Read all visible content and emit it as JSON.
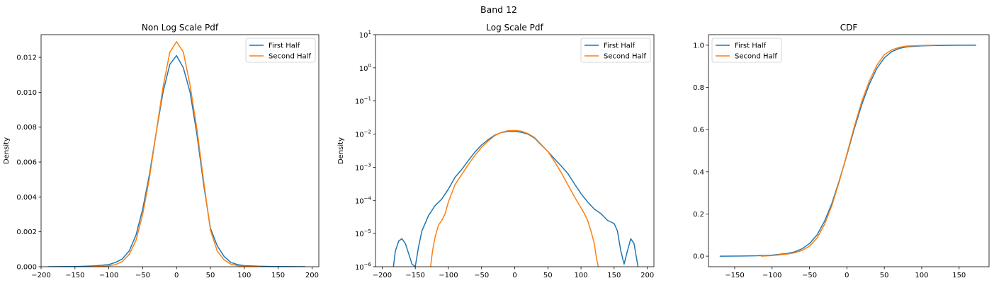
{
  "figure_title": "Band 12",
  "colors": {
    "first": "#1f77b4",
    "second": "#ff7f0e"
  },
  "chart_data": [
    {
      "type": "line",
      "title": "Non Log Scale Pdf",
      "xlabel": "",
      "ylabel": "Density",
      "xlim": [
        -200,
        210
      ],
      "ylim": [
        0,
        0.0133
      ],
      "yscale": "linear",
      "xticks": [
        -200,
        -150,
        -100,
        -50,
        0,
        50,
        100,
        150,
        200
      ],
      "yticks": [
        0,
        0.002,
        0.004,
        0.006,
        0.008,
        0.01,
        0.012
      ],
      "ytick_labels": [
        "0.000",
        "0.002",
        "0.004",
        "0.006",
        "0.008",
        "0.010",
        "0.012"
      ],
      "legend": "top-right",
      "series": [
        {
          "name": "First Half",
          "x": [
            -190,
            -160,
            -140,
            -120,
            -100,
            -90,
            -80,
            -70,
            -60,
            -50,
            -40,
            -30,
            -20,
            -10,
            0,
            10,
            20,
            30,
            40,
            50,
            60,
            70,
            80,
            90,
            100,
            120,
            150,
            190
          ],
          "y": [
            0.0,
            1e-05,
            2e-05,
            5e-05,
            0.00012,
            0.00025,
            0.00045,
            0.0009,
            0.0018,
            0.0033,
            0.0053,
            0.0077,
            0.01,
            0.0116,
            0.0121,
            0.0114,
            0.01,
            0.0076,
            0.0047,
            0.0022,
            0.0012,
            0.0006,
            0.00025,
            0.00012,
            6e-05,
            3e-05,
            1e-05,
            0.0
          ]
        },
        {
          "name": "Second Half",
          "x": [
            -125,
            -110,
            -100,
            -90,
            -80,
            -70,
            -60,
            -50,
            -40,
            -30,
            -20,
            -10,
            0,
            10,
            20,
            30,
            40,
            50,
            60,
            70,
            80,
            90,
            100,
            110,
            125
          ],
          "y": [
            0.0,
            2e-05,
            5e-05,
            0.00012,
            0.0003,
            0.0007,
            0.0015,
            0.003,
            0.0051,
            0.0077,
            0.0103,
            0.0123,
            0.0129,
            0.0123,
            0.0104,
            0.0079,
            0.0049,
            0.0021,
            0.0009,
            0.0004,
            0.00015,
            6e-05,
            2e-05,
            1e-05,
            0.0
          ]
        }
      ]
    },
    {
      "type": "line",
      "title": "Log Scale Pdf",
      "xlabel": "",
      "ylabel": "Density",
      "xlim": [
        -210,
        210
      ],
      "ylim": [
        1e-06,
        10
      ],
      "yscale": "log",
      "xticks": [
        -200,
        -150,
        -100,
        -50,
        0,
        50,
        100,
        150,
        200
      ],
      "yticks": [
        1e-06,
        1e-05,
        0.0001,
        0.001,
        0.01,
        0.1,
        1,
        10
      ],
      "ytick_labels": [
        [
          "10",
          "−6"
        ],
        [
          "10",
          "−5"
        ],
        [
          "10",
          "−4"
        ],
        [
          "10",
          "−3"
        ],
        [
          "10",
          "−2"
        ],
        [
          "10",
          "−1"
        ],
        [
          "10",
          "0"
        ],
        [
          "10",
          "1"
        ]
      ],
      "legend": "top-right",
      "series": [
        {
          "name": "First Half",
          "x": [
            -183,
            -180,
            -175,
            -170,
            -165,
            -160,
            -155,
            -150,
            -145,
            -140,
            -130,
            -120,
            -110,
            -100,
            -90,
            -80,
            -70,
            -60,
            -50,
            -40,
            -30,
            -20,
            -10,
            0,
            10,
            20,
            30,
            40,
            50,
            60,
            70,
            80,
            90,
            100,
            110,
            120,
            130,
            140,
            150,
            155,
            160,
            165,
            170,
            175,
            180,
            186
          ],
          "y": [
            1e-06,
            3e-06,
            6e-06,
            7e-06,
            5e-06,
            2.5e-06,
            1.2e-06,
            1e-06,
            4e-06,
            1.2e-05,
            3.5e-05,
            7e-05,
            0.00011,
            0.00022,
            0.0005,
            0.00085,
            0.0016,
            0.0029,
            0.0047,
            0.0068,
            0.0093,
            0.0112,
            0.0121,
            0.0121,
            0.0114,
            0.01,
            0.0076,
            0.0047,
            0.003,
            0.0018,
            0.0011,
            0.00065,
            0.00032,
            0.00016,
            9e-05,
            5.5e-05,
            4e-05,
            2.5e-05,
            2e-05,
            1.2e-05,
            3e-06,
            1.2e-06,
            3e-06,
            7e-06,
            5e-06,
            1e-06
          ]
        },
        {
          "name": "Second Half",
          "x": [
            -127,
            -124,
            -120,
            -115,
            -110,
            -105,
            -100,
            -90,
            -80,
            -70,
            -60,
            -50,
            -40,
            -30,
            -20,
            -10,
            0,
            10,
            20,
            30,
            40,
            50,
            60,
            70,
            80,
            90,
            100,
            105,
            110,
            115,
            120,
            123,
            126
          ],
          "y": [
            1e-06,
            3e-06,
            8e-06,
            1.8e-05,
            2.5e-05,
            4e-05,
            9e-05,
            0.0003,
            0.0006,
            0.0012,
            0.0023,
            0.004,
            0.0062,
            0.009,
            0.0113,
            0.0127,
            0.0129,
            0.0123,
            0.0104,
            0.0079,
            0.0049,
            0.003,
            0.0015,
            0.0007,
            0.0003,
            0.00013,
            6e-05,
            4e-05,
            2.5e-05,
            1.2e-05,
            5e-06,
            2e-06,
            1e-06
          ]
        }
      ]
    },
    {
      "type": "line",
      "title": "CDF",
      "xlabel": "",
      "ylabel": "",
      "xlim": [
        -185,
        190
      ],
      "ylim": [
        -0.05,
        1.05
      ],
      "yscale": "linear",
      "xticks": [
        -150,
        -100,
        -50,
        0,
        50,
        100,
        150
      ],
      "yticks": [
        0,
        0.2,
        0.4,
        0.6,
        0.8,
        1.0
      ],
      "ytick_labels": [
        "0.0",
        "0.2",
        "0.4",
        "0.6",
        "0.8",
        "1.0"
      ],
      "legend": "top-left",
      "series": [
        {
          "name": "First Half",
          "x": [
            -170,
            -140,
            -120,
            -100,
            -80,
            -70,
            -60,
            -50,
            -40,
            -30,
            -20,
            -10,
            0,
            10,
            20,
            30,
            40,
            50,
            60,
            70,
            80,
            100,
            120,
            150,
            173
          ],
          "y": [
            0.0,
            0.0005,
            0.002,
            0.005,
            0.013,
            0.02,
            0.035,
            0.06,
            0.1,
            0.165,
            0.25,
            0.36,
            0.48,
            0.605,
            0.72,
            0.815,
            0.89,
            0.94,
            0.97,
            0.985,
            0.992,
            0.997,
            0.999,
            1.0,
            1.0
          ]
        },
        {
          "name": "Second Half",
          "x": [
            -115,
            -100,
            -80,
            -70,
            -60,
            -50,
            -40,
            -30,
            -20,
            -10,
            0,
            10,
            20,
            30,
            40,
            50,
            60,
            70,
            80,
            100,
            118
          ],
          "y": [
            0.0,
            0.003,
            0.01,
            0.016,
            0.027,
            0.048,
            0.085,
            0.15,
            0.24,
            0.355,
            0.485,
            0.615,
            0.735,
            0.83,
            0.905,
            0.955,
            0.978,
            0.99,
            0.996,
            0.999,
            1.0
          ]
        }
      ]
    }
  ]
}
